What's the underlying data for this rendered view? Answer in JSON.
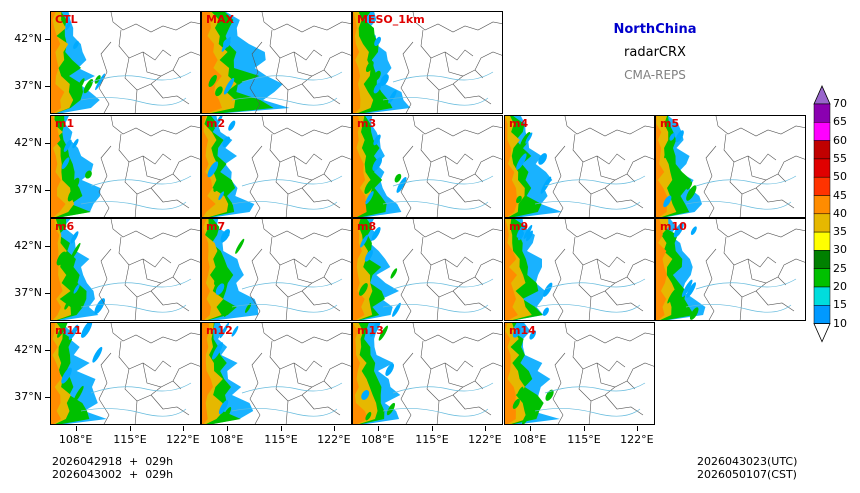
{
  "header": {
    "region": "NorthChina",
    "variable": "radarCRX",
    "model": "CMA-REPS"
  },
  "panels": [
    "CTL",
    "MAX",
    "MESO_1km",
    "m1",
    "m2",
    "m3",
    "m4",
    "m5",
    "m6",
    "m7",
    "m8",
    "m9",
    "m10",
    "m11",
    "m12",
    "m13",
    "m14"
  ],
  "axes": {
    "lat_labels": [
      "42°N",
      "37°N"
    ],
    "lon_labels": [
      "108°E",
      "115°E",
      "122°E"
    ]
  },
  "colorbar": {
    "levels": [
      "70",
      "65",
      "60",
      "55",
      "50",
      "45",
      "40",
      "35",
      "30",
      "25",
      "20",
      "15",
      "10"
    ],
    "colors": [
      "#9966cc",
      "#8a00b0",
      "#ff00ff",
      "#c00000",
      "#e00000",
      "#ff3300",
      "#ff8c00",
      "#e6b800",
      "#ffff00",
      "#008000",
      "#00c000",
      "#00dddd",
      "#0099ff"
    ]
  },
  "footer": {
    "init_line1": "2026042918  +  029h",
    "init_line2": "2026043002  +  029h",
    "valid_utc": "2026043023(UTC)",
    "valid_cst": "2026050107(CST)"
  }
}
